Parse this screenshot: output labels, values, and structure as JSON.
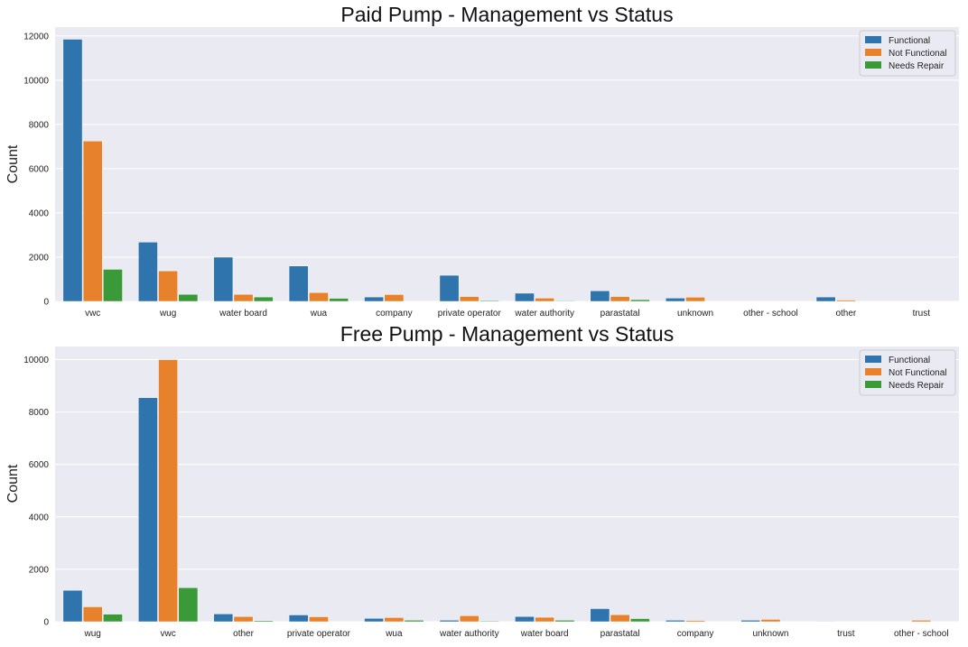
{
  "colors": {
    "functional": "#2f74ad",
    "not_functional": "#e8812b",
    "needs_repair": "#3a9a3a",
    "plot_bg": "#eaeaf2",
    "grid": "#ffffff"
  },
  "chart_data": [
    {
      "type": "bar",
      "title": "Paid Pump - Management vs Status",
      "xlabel": "",
      "ylabel": "Count",
      "ylim": [
        0,
        12400
      ],
      "yticks": [
        0,
        2000,
        4000,
        6000,
        8000,
        10000,
        12000
      ],
      "grid": true,
      "legend_position": "top-right",
      "categories": [
        "vwc",
        "wug",
        "water board",
        "wua",
        "company",
        "private operator",
        "water authority",
        "parastatal",
        "unknown",
        "other - school",
        "other",
        "trust"
      ],
      "series": [
        {
          "name": "Functional",
          "values": [
            11850,
            2680,
            2000,
            1600,
            200,
            1180,
            370,
            480,
            150,
            0,
            200,
            0
          ]
        },
        {
          "name": "Not Functional",
          "values": [
            7250,
            1380,
            320,
            400,
            310,
            220,
            150,
            220,
            190,
            0,
            60,
            0
          ]
        },
        {
          "name": "Needs Repair",
          "values": [
            1450,
            320,
            200,
            140,
            0,
            40,
            30,
            80,
            0,
            0,
            0,
            0
          ]
        }
      ]
    },
    {
      "type": "bar",
      "title": "Free Pump - Management vs Status",
      "xlabel": "",
      "ylabel": "Count",
      "ylim": [
        0,
        10500
      ],
      "yticks": [
        0,
        2000,
        4000,
        6000,
        8000,
        10000
      ],
      "grid": true,
      "legend_position": "top-right",
      "categories": [
        "wug",
        "vwc",
        "other",
        "private operator",
        "wua",
        "water authority",
        "water board",
        "parastatal",
        "company",
        "unknown",
        "trust",
        "other - school"
      ],
      "series": [
        {
          "name": "Functional",
          "values": [
            1200,
            8550,
            300,
            260,
            130,
            60,
            200,
            500,
            60,
            60,
            20,
            0
          ]
        },
        {
          "name": "Not Functional",
          "values": [
            570,
            10000,
            200,
            190,
            160,
            230,
            170,
            270,
            50,
            90,
            0,
            60
          ]
        },
        {
          "name": "Needs Repair",
          "values": [
            290,
            1300,
            40,
            0,
            60,
            30,
            60,
            120,
            0,
            0,
            0,
            0
          ]
        }
      ]
    }
  ]
}
